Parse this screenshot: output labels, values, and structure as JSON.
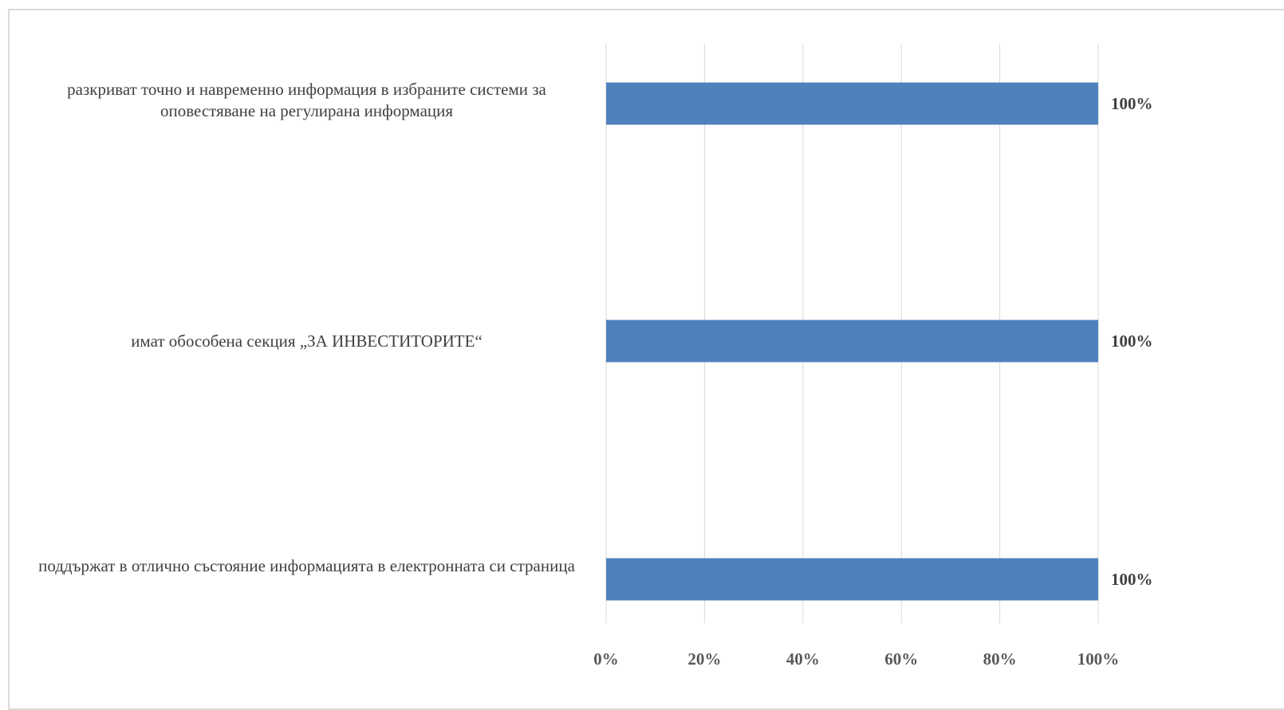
{
  "chart_data": {
    "type": "bar",
    "orientation": "horizontal",
    "categories": [
      "разкриват точно и навременно информация в избраните системи за оповестяване на регулирана информация",
      "имат обособена секция „ЗА ИНВЕСТИТОРИТЕ“",
      "поддържат в отлично състояние информацията в електронната си страница"
    ],
    "series": [
      {
        "values": [
          1.0,
          1.0,
          1.0
        ],
        "labels": [
          "100%",
          "100%",
          "100%"
        ],
        "color": "#4f81bd"
      }
    ],
    "xlim": [
      0,
      1
    ],
    "x_ticks": [
      0,
      0.2,
      0.4,
      0.6,
      0.8,
      1.0
    ],
    "x_tick_labels": [
      "0%",
      "20%",
      "40%",
      "60%",
      "80%",
      "100%"
    ],
    "grid": true,
    "gridline_color": "#d9d9d9",
    "legend": "none"
  }
}
